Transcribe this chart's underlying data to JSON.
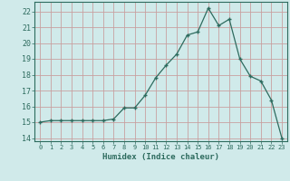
{
  "x": [
    0,
    1,
    2,
    3,
    4,
    5,
    6,
    7,
    8,
    9,
    10,
    11,
    12,
    13,
    14,
    15,
    16,
    17,
    18,
    19,
    20,
    21,
    22,
    23
  ],
  "y": [
    15.0,
    15.1,
    15.1,
    15.1,
    15.1,
    15.1,
    15.1,
    15.2,
    15.9,
    15.9,
    16.7,
    17.8,
    18.6,
    19.3,
    20.5,
    20.7,
    22.2,
    21.1,
    21.5,
    19.0,
    17.9,
    17.6,
    16.4,
    14.0
  ],
  "xlabel": "Humidex (Indice chaleur)",
  "ylabel": "",
  "ylim": [
    13.8,
    22.6
  ],
  "xlim": [
    -0.5,
    23.5
  ],
  "yticks": [
    14,
    15,
    16,
    17,
    18,
    19,
    20,
    21,
    22
  ],
  "xticks": [
    0,
    1,
    2,
    3,
    4,
    5,
    6,
    7,
    8,
    9,
    10,
    11,
    12,
    13,
    14,
    15,
    16,
    17,
    18,
    19,
    20,
    21,
    22,
    23
  ],
  "line_color": "#2d6b5e",
  "marker_color": "#2d6b5e",
  "bg_color": "#d0eaea",
  "grid_color_major": "#c8a0a0",
  "grid_color_minor": "#d8c0c0",
  "border_color": "#2d6b5e",
  "tick_label_color": "#2d6b5e",
  "xlabel_color": "#2d6b5e"
}
